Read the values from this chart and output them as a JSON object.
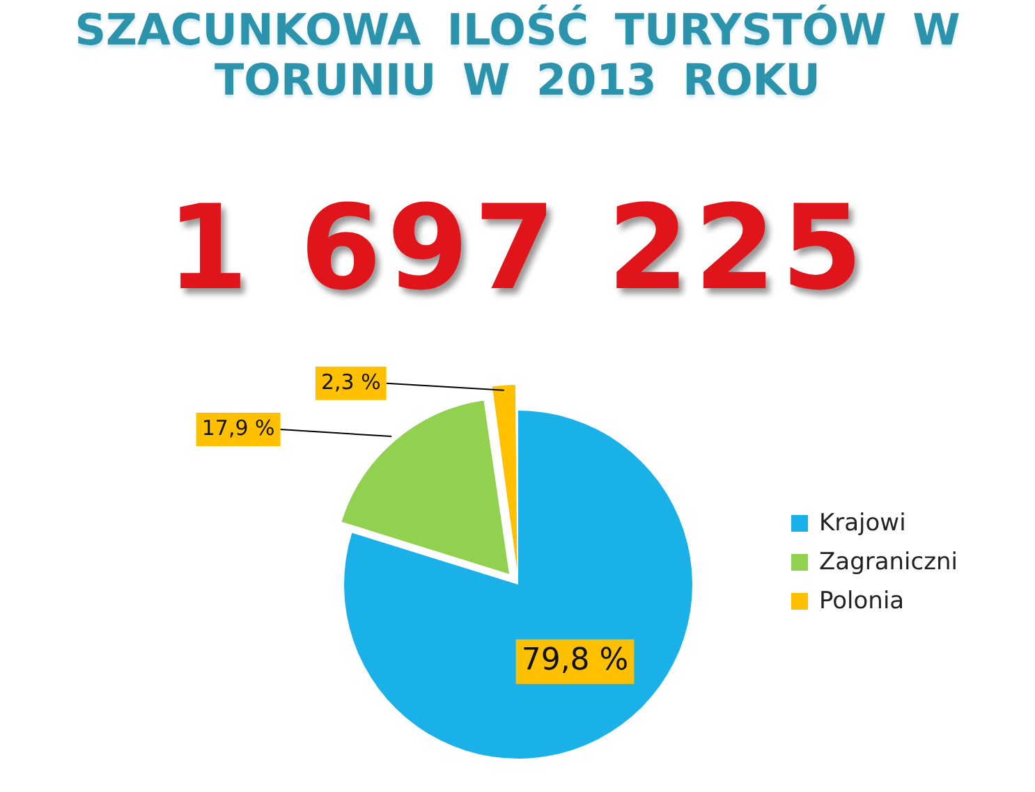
{
  "chart_data": {
    "type": "pie",
    "title": "SZACUNKOWA ILOŚĆ TURYSTÓW W TORUNIU W 2013 ROKU",
    "subtitle": "1 697 225",
    "categories": [
      "Krajowi",
      "Zagraniczni",
      "Polonia"
    ],
    "values": [
      79.8,
      17.9,
      2.3
    ],
    "colors": [
      "#1ab0e8",
      "#92d050",
      "#ffc000"
    ],
    "value_labels": [
      "79,8 %",
      "17,9 %",
      "2,3 %"
    ],
    "legend": "right"
  }
}
